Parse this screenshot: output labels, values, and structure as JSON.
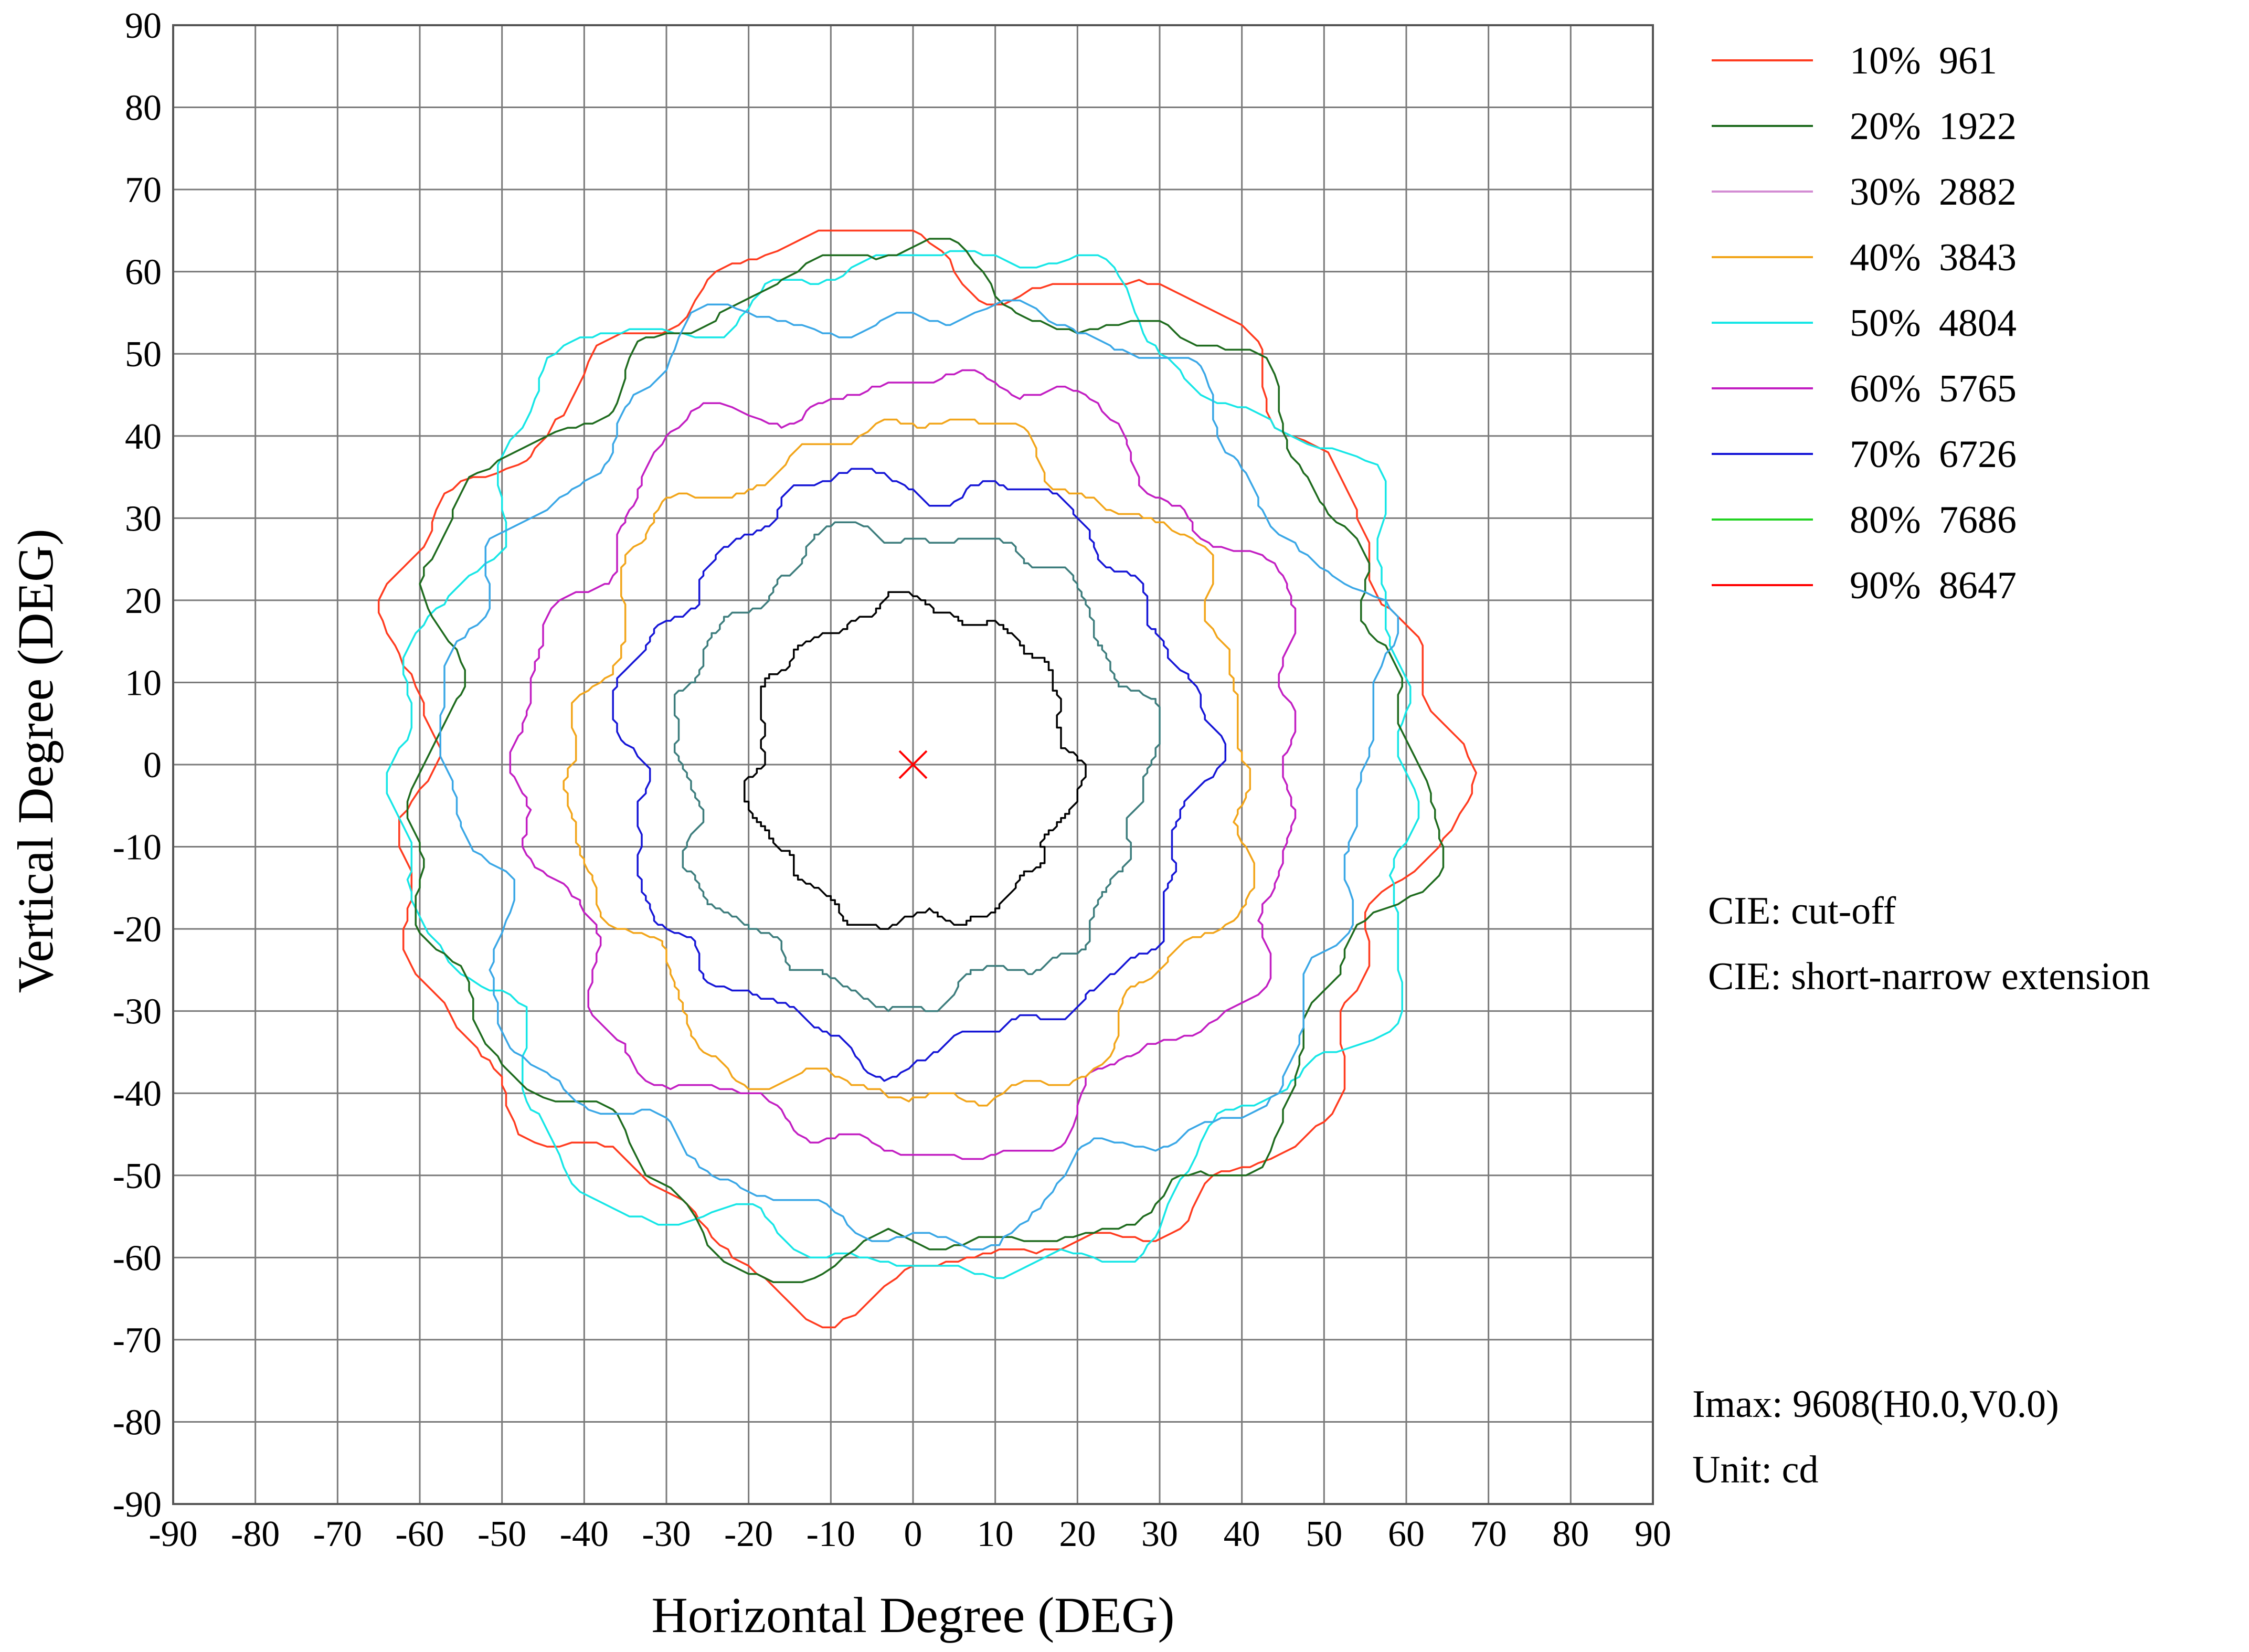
{
  "chart_data": {
    "type": "isocandela-contour",
    "xlabel": "Horizontal Degree (DEG)",
    "ylabel": "Vertical Degree (DEG)",
    "xlim": [
      -90,
      90
    ],
    "ylim": [
      -90,
      90
    ],
    "x_ticks": [
      "-90",
      "-80",
      "-70",
      "-60",
      "-50",
      "-40",
      "-30",
      "-20",
      "-10",
      "0",
      "10",
      "20",
      "30",
      "40",
      "50",
      "60",
      "70",
      "80",
      "90"
    ],
    "y_ticks": [
      "90",
      "80",
      "70",
      "60",
      "50",
      "40",
      "30",
      "20",
      "10",
      "0",
      "-10",
      "-20",
      "-30",
      "-40",
      "-50",
      "-60",
      "-70",
      "-80",
      "-90"
    ],
    "grid": true,
    "legend_position": "top-right",
    "center_marker": {
      "x": 0,
      "y": 0,
      "color": "#ff0000"
    },
    "levels": [
      {
        "label": "10%",
        "value": "961",
        "color": "#ff3b1f",
        "radius": 63.0,
        "seed": 1.3
      },
      {
        "label": "20%",
        "value": "1922",
        "color": "#1e6b1e",
        "radius": 60.5,
        "seed": 2.1
      },
      {
        "label": "30%",
        "value": "2882",
        "color": "#d38cd3",
        "radius": null,
        "seed": 0
      },
      {
        "label": "40%",
        "value": "3843",
        "color": "#f2a51a",
        "radius": 41.0,
        "seed": 3.7
      },
      {
        "label": "50%",
        "value": "4804",
        "color": "#16e6e6",
        "radius": 61.5,
        "seed": 4.4
      },
      {
        "label": "60%",
        "value": "5765",
        "color": "#c21ec2",
        "radius": 47.0,
        "seed": 5.2
      },
      {
        "label": "70%",
        "value": "6726",
        "color": "#1515d6",
        "radius": 35.0,
        "seed": 0.6
      },
      {
        "label": "80%",
        "value": "7686",
        "color": "#22d322",
        "radius": null,
        "seed": 0
      },
      {
        "label": "90%",
        "value": "8647",
        "color": "#ff0000",
        "radius": null,
        "seed": 0
      }
    ],
    "extra_contours": [
      {
        "color": "#3aa7e6",
        "radius": 56.0,
        "seed": 6.3
      },
      {
        "color": "#3d7d7d",
        "radius": 28.5,
        "seed": 7.1
      },
      {
        "color": "#000000",
        "radius": 19.5,
        "seed": 8.9
      }
    ]
  },
  "info": {
    "cie_line1": "CIE:  cut-off",
    "cie_line2": "CIE:  short-narrow extension",
    "imax": "Imax:  9608(H0.0,V0.0)",
    "unit": "Unit:  cd"
  }
}
